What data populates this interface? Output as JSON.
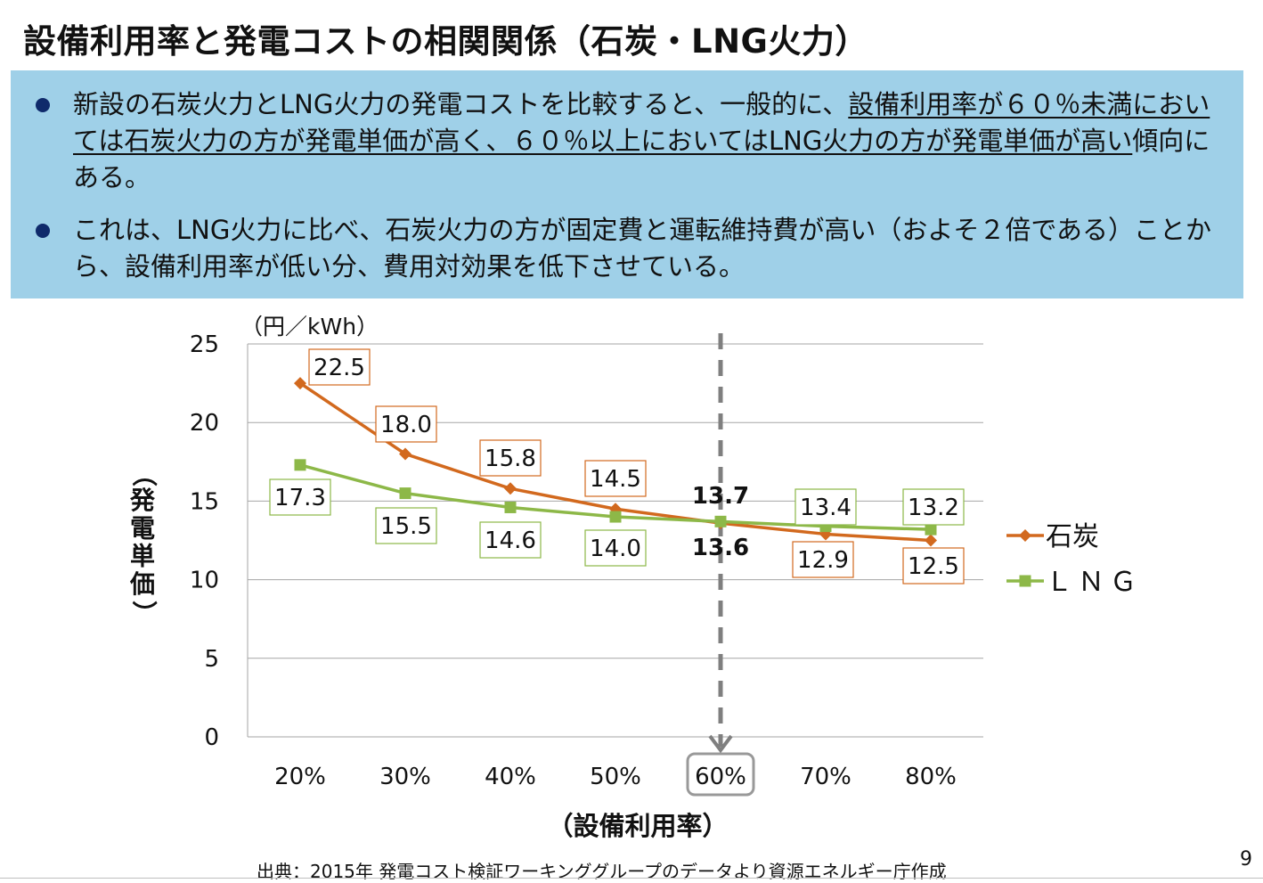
{
  "title": "設備利用率と発電コストの相関関係（石炭・LNG火力）",
  "bullets": [
    {
      "plain_before": "新設の石炭火力とLNG火力の発電コストを比較すると、一般的に、",
      "underlined": "設備利用率が６０％未満においては石炭火力の方が発電単価が高く、６０％以上においてはLNG火力の方が発電単価が高い",
      "plain_after": "傾向にある。"
    },
    {
      "plain_before": "これは、LNG火力に比べ、石炭火力の方が固定費と運転維持費が高い（およそ２倍である）ことから、設備利用率が低い分、費用対効果を低下させている。",
      "underlined": "",
      "plain_after": ""
    }
  ],
  "chart_data": {
    "type": "line",
    "categories": [
      "20%",
      "30%",
      "40%",
      "50%",
      "60%",
      "70%",
      "80%"
    ],
    "series": [
      {
        "name": "石炭",
        "values": [
          22.5,
          18.0,
          15.8,
          14.5,
          13.6,
          12.9,
          12.5
        ],
        "color": "#d2691e",
        "label_border": "#d2691e"
      },
      {
        "name": "ＬＮＧ",
        "values": [
          17.3,
          15.5,
          14.6,
          14.0,
          13.7,
          13.4,
          13.2
        ],
        "color": "#8db848",
        "label_border": "#8db848"
      }
    ],
    "value_labels": {
      "coal": [
        "22.5",
        "18.0",
        "15.8",
        "14.5",
        "13.6",
        "12.9",
        "12.5"
      ],
      "lng": [
        "17.3",
        "15.5",
        "14.6",
        "14.0",
        "13.7",
        "13.4",
        "13.2"
      ]
    },
    "ylim": [
      0,
      25
    ],
    "yticks": [
      0,
      5,
      10,
      15,
      20,
      25
    ],
    "ylabel": "（発電単価）",
    "yunit": "（円／kWh）",
    "xlabel": "（設備利用率）",
    "highlight_category": "60%",
    "grid": true,
    "legend_position": "right"
  },
  "source": "出典：2015年 発電コスト検証ワーキンググループのデータより資源エネルギー庁作成",
  "page_number": "9"
}
